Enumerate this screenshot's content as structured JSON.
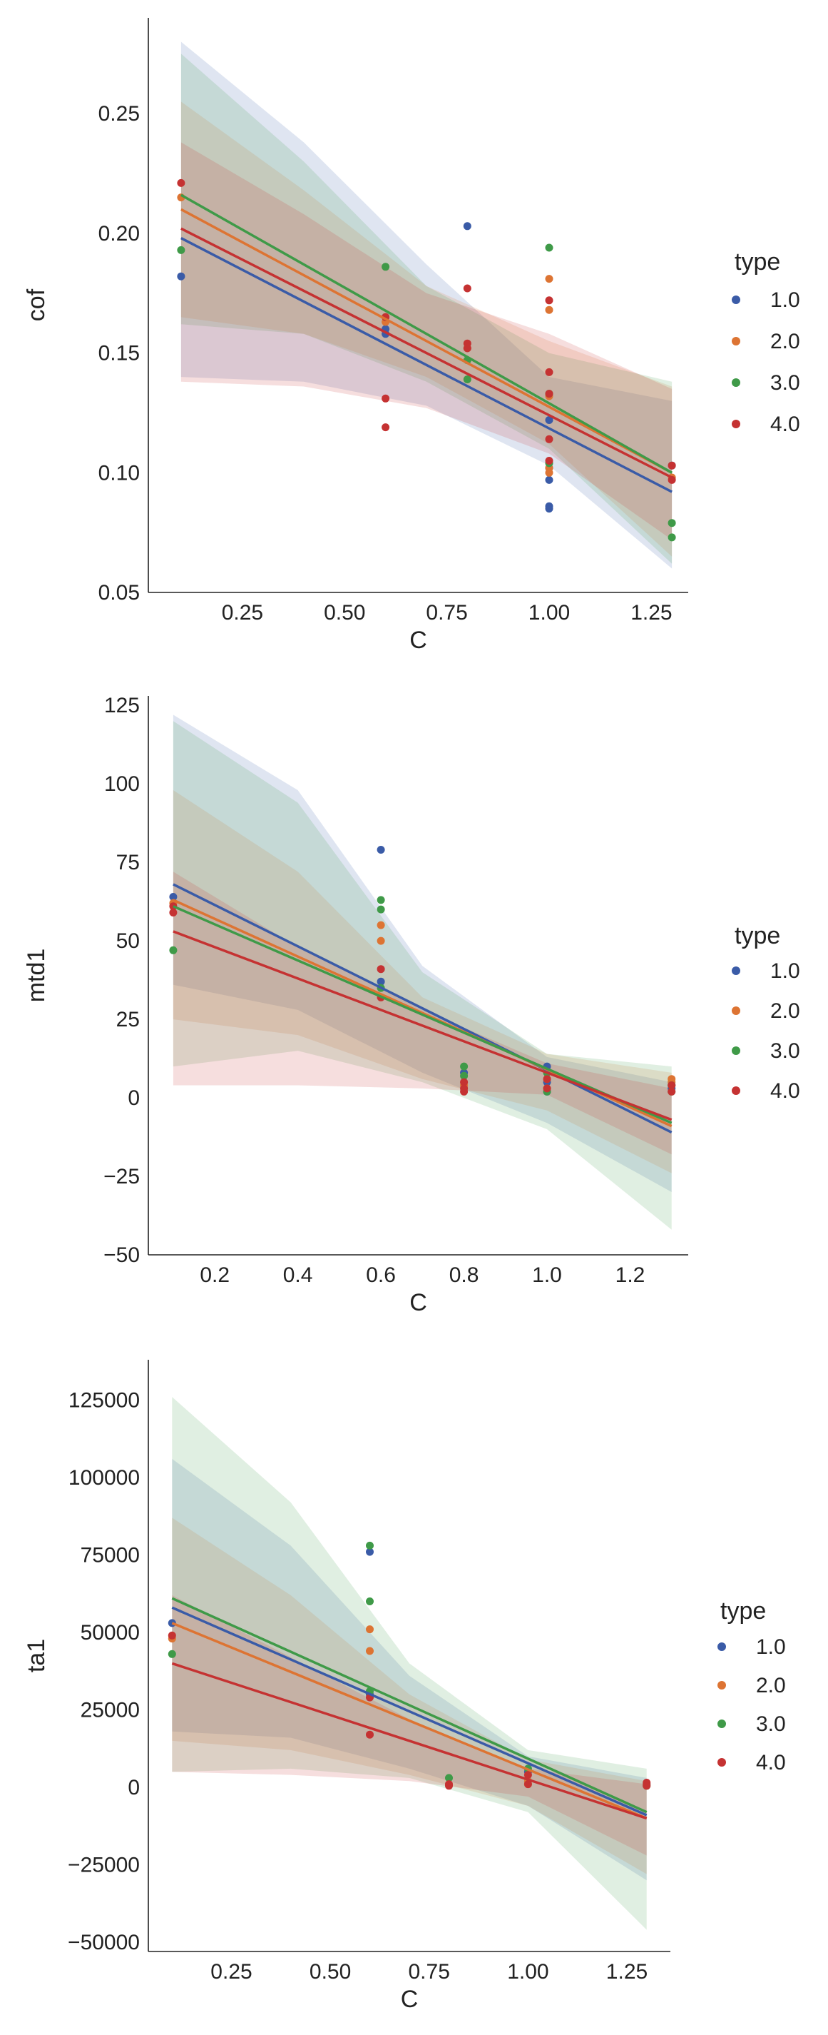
{
  "legend": {
    "title": "type",
    "entries": [
      {
        "label": "1.0",
        "color": "#3a5ba7"
      },
      {
        "label": "2.0",
        "color": "#dd7433"
      },
      {
        "label": "3.0",
        "color": "#3f9a48"
      },
      {
        "label": "4.0",
        "color": "#c53232"
      }
    ]
  },
  "chart_data": [
    {
      "type": "scatter",
      "title": "",
      "xlabel": "C",
      "ylabel": "cof",
      "xlim": [
        0.02,
        1.34
      ],
      "ylim": [
        0.05,
        0.29
      ],
      "xticks": [
        0.25,
        0.5,
        0.75,
        1.0,
        1.25
      ],
      "xtick_labels": [
        "0.25",
        "0.50",
        "0.75",
        "1.00",
        "1.25"
      ],
      "yticks": [
        0.05,
        0.1,
        0.15,
        0.2,
        0.25
      ],
      "ytick_labels": [
        "0.05",
        "0.10",
        "0.15",
        "0.20",
        "0.25"
      ],
      "series": [
        {
          "name": "1.0",
          "x": [
            0.1,
            0.6,
            0.6,
            0.8,
            1.0,
            1.0,
            1.0,
            1.0,
            1.0,
            1.3
          ],
          "y": [
            0.182,
            0.158,
            0.16,
            0.203,
            0.122,
            0.097,
            0.102,
            0.085,
            0.086,
            0.103
          ],
          "fit": {
            "x": [
              0.1,
              1.3
            ],
            "y": [
              0.198,
              0.092
            ]
          },
          "band_upper": [
            0.28,
            0.238,
            0.187,
            0.14,
            0.13
          ],
          "band_lower": [
            0.14,
            0.138,
            0.128,
            0.103,
            0.06
          ]
        },
        {
          "name": "2.0",
          "x": [
            0.1,
            0.6,
            0.8,
            1.0,
            1.0,
            1.0,
            1.0,
            1.0,
            1.3
          ],
          "y": [
            0.215,
            0.163,
            0.152,
            0.181,
            0.168,
            0.132,
            0.102,
            0.1,
            0.098
          ],
          "fit": {
            "x": [
              0.1,
              1.3
            ],
            "y": [
              0.21,
              0.1
            ]
          },
          "band_upper": [
            0.255,
            0.218,
            0.178,
            0.155,
            0.136
          ],
          "band_lower": [
            0.165,
            0.158,
            0.14,
            0.112,
            0.065
          ]
        },
        {
          "name": "3.0",
          "x": [
            0.1,
            0.6,
            0.6,
            0.8,
            0.8,
            1.0,
            1.0,
            1.0,
            1.3,
            1.3
          ],
          "y": [
            0.193,
            0.186,
            0.165,
            0.139,
            0.147,
            0.194,
            0.133,
            0.104,
            0.079,
            0.073
          ],
          "fit": {
            "x": [
              0.1,
              1.3
            ],
            "y": [
              0.216,
              0.1
            ]
          },
          "band_upper": [
            0.275,
            0.23,
            0.178,
            0.15,
            0.138
          ],
          "band_lower": [
            0.162,
            0.158,
            0.138,
            0.11,
            0.062
          ]
        },
        {
          "name": "4.0",
          "x": [
            0.1,
            0.6,
            0.6,
            0.6,
            0.8,
            0.8,
            0.8,
            1.0,
            1.0,
            1.0,
            1.0,
            1.0,
            1.3,
            1.3
          ],
          "y": [
            0.221,
            0.131,
            0.119,
            0.165,
            0.177,
            0.154,
            0.152,
            0.172,
            0.142,
            0.133,
            0.114,
            0.105,
            0.097,
            0.103
          ],
          "fit": {
            "x": [
              0.1,
              1.3
            ],
            "y": [
              0.202,
              0.098
            ]
          },
          "band_upper": [
            0.238,
            0.208,
            0.175,
            0.158,
            0.135
          ],
          "band_lower": [
            0.138,
            0.136,
            0.127,
            0.108,
            0.072
          ]
        }
      ]
    },
    {
      "type": "scatter",
      "title": "",
      "xlabel": "C",
      "ylabel": "mtd1",
      "xlim": [
        0.04,
        1.34
      ],
      "ylim": [
        -50,
        128
      ],
      "xticks": [
        0.2,
        0.4,
        0.6,
        0.8,
        1.0,
        1.2
      ],
      "xtick_labels": [
        "0.2",
        "0.4",
        "0.6",
        "0.8",
        "1.0",
        "1.2"
      ],
      "yticks": [
        -50,
        -25,
        0,
        25,
        50,
        75,
        100,
        125
      ],
      "ytick_labels": [
        "−50",
        "−25",
        "0",
        "25",
        "50",
        "75",
        "100",
        "125"
      ],
      "series": [
        {
          "name": "1.0",
          "x": [
            0.1,
            0.6,
            0.6,
            0.8,
            1.0,
            1.0,
            1.0,
            1.3,
            1.3
          ],
          "y": [
            64,
            79,
            37,
            8,
            10,
            5,
            2,
            4,
            3
          ],
          "fit": {
            "x": [
              0.1,
              1.3
            ],
            "y": [
              68,
              -11
            ]
          },
          "band_upper": [
            122,
            98,
            42,
            13,
            5
          ],
          "band_lower": [
            36,
            28,
            8,
            -8,
            -30
          ]
        },
        {
          "name": "2.0",
          "x": [
            0.1,
            0.6,
            0.6,
            0.8,
            1.0,
            1.0,
            1.3,
            1.3
          ],
          "y": [
            62,
            55,
            50,
            4,
            6,
            3,
            5,
            6
          ],
          "fit": {
            "x": [
              0.1,
              1.3
            ],
            "y": [
              63,
              -9
            ]
          },
          "band_upper": [
            98,
            72,
            32,
            14,
            8
          ],
          "band_lower": [
            25,
            20,
            6,
            -4,
            -24
          ]
        },
        {
          "name": "3.0",
          "x": [
            0.1,
            0.6,
            0.6,
            0.6,
            0.8,
            0.8,
            1.0,
            1.0,
            1.3,
            1.3
          ],
          "y": [
            47,
            63,
            60,
            35,
            10,
            7,
            8,
            2,
            4,
            2
          ],
          "fit": {
            "x": [
              0.1,
              1.3
            ],
            "y": [
              61,
              -8
            ]
          },
          "band_upper": [
            120,
            94,
            40,
            14,
            10
          ],
          "band_lower": [
            10,
            15,
            5,
            -10,
            -42
          ]
        },
        {
          "name": "4.0",
          "x": [
            0.1,
            0.1,
            0.6,
            0.6,
            0.8,
            0.8,
            0.8,
            1.0,
            1.0,
            1.3,
            1.3
          ],
          "y": [
            59,
            61,
            41,
            32,
            5,
            3,
            2,
            6,
            3,
            4,
            2
          ],
          "fit": {
            "x": [
              0.1,
              1.3
            ],
            "y": [
              53,
              -7
            ]
          },
          "band_upper": [
            72,
            48,
            28,
            11,
            3
          ],
          "band_lower": [
            4,
            4,
            3,
            1,
            -18
          ]
        }
      ]
    },
    {
      "type": "scatter",
      "title": "",
      "xlabel": "C",
      "ylabel": "ta1",
      "xlim": [
        0.04,
        1.36
      ],
      "ylim": [
        -53000,
        138000
      ],
      "xticks": [
        0.25,
        0.5,
        0.75,
        1.0,
        1.25
      ],
      "xtick_labels": [
        "0.25",
        "0.50",
        "0.75",
        "1.00",
        "1.25"
      ],
      "yticks": [
        -50000,
        -25000,
        0,
        25000,
        50000,
        75000,
        100000,
        125000
      ],
      "ytick_labels": [
        "−50000",
        "−25000",
        "0",
        "25000",
        "50000",
        "75000",
        "100000",
        "125000"
      ],
      "series": [
        {
          "name": "1.0",
          "x": [
            0.1,
            0.6,
            0.6,
            1.0,
            1.0,
            1.3
          ],
          "y": [
            53000,
            76000,
            30000,
            5000,
            2000,
            1000
          ],
          "fit": {
            "x": [
              0.1,
              1.3
            ],
            "y": [
              58000,
              -9000
            ]
          },
          "band_upper": [
            106000,
            78000,
            36000,
            10000,
            3000
          ],
          "band_lower": [
            18000,
            16000,
            6000,
            -6000,
            -30000
          ]
        },
        {
          "name": "2.0",
          "x": [
            0.1,
            0.6,
            0.6,
            1.0,
            1.0,
            1.3
          ],
          "y": [
            48000,
            51000,
            44000,
            2000,
            1000,
            1000
          ],
          "fit": {
            "x": [
              0.1,
              1.3
            ],
            "y": [
              53000,
              -10000
            ]
          },
          "band_upper": [
            87000,
            62000,
            30000,
            9000,
            2000
          ],
          "band_lower": [
            15000,
            12000,
            4000,
            -6000,
            -28000
          ]
        },
        {
          "name": "3.0",
          "x": [
            0.1,
            0.6,
            0.6,
            0.6,
            0.8,
            1.0,
            1.3
          ],
          "y": [
            43000,
            78000,
            60000,
            31000,
            3000,
            6000,
            500
          ],
          "fit": {
            "x": [
              0.1,
              1.3
            ],
            "y": [
              61000,
              -8000
            ]
          },
          "band_upper": [
            126000,
            92000,
            40000,
            12000,
            6000
          ],
          "band_lower": [
            5000,
            6000,
            3000,
            -8000,
            -46000
          ]
        },
        {
          "name": "4.0",
          "x": [
            0.1,
            0.6,
            0.6,
            0.8,
            0.8,
            1.0,
            1.0,
            1.3,
            1.3
          ],
          "y": [
            49000,
            29000,
            17000,
            1000,
            500,
            4000,
            1000,
            1500,
            500
          ],
          "fit": {
            "x": [
              0.1,
              1.3
            ],
            "y": [
              40000,
              -10000
            ]
          },
          "band_upper": [
            62000,
            42000,
            22000,
            6000,
            1000
          ],
          "band_lower": [
            5000,
            4000,
            2000,
            -3000,
            -22000
          ]
        }
      ]
    }
  ]
}
